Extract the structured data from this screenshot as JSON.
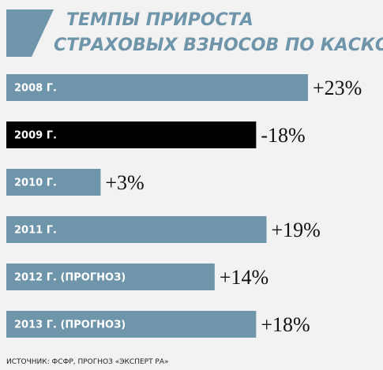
{
  "chart_data": {
    "type": "bar",
    "title": [
      "ТЕМПЫ ПРИРОСТА",
      "СТРАХОВЫХ ВЗНОСОВ ПО КАСКО"
    ],
    "categories": [
      "2008 Г.",
      "2009 Г.",
      "2010 Г.",
      "2011 Г.",
      "2012 Г. (ПРОГНОЗ)",
      "2013 Г. (ПРОГНОЗ)"
    ],
    "values": [
      23,
      -18,
      3,
      19,
      14,
      18
    ],
    "value_labels": [
      "+23%",
      "-18%",
      "+3%",
      "+19%",
      "+14%",
      "+18%"
    ],
    "colors": [
      "#6f95aa",
      "#000000",
      "#6f95aa",
      "#6f95aa",
      "#6f95aa",
      "#6f95aa"
    ],
    "source": "ИСТОЧНИК: ФСФР, ПРОГНОЗ «ЭКСПЕРТ РА»"
  }
}
